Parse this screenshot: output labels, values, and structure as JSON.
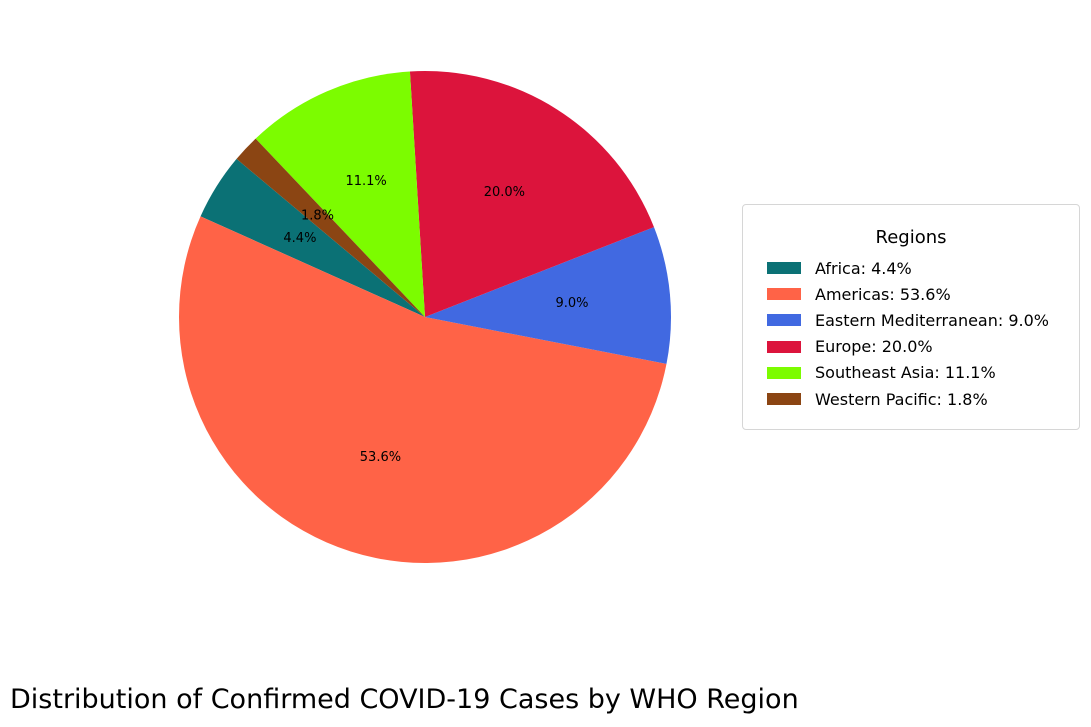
{
  "chart_data": {
    "type": "pie",
    "title": "Distribution of Confirmed COVID-19 Cases by WHO Region",
    "legend_title": "Regions",
    "legend_placement": "right",
    "categories": [
      "Africa",
      "Americas",
      "Eastern Mediterranean",
      "Europe",
      "Southeast Asia",
      "Western Pacific"
    ],
    "values": [
      4.4,
      53.6,
      9.0,
      20.0,
      11.1,
      1.8
    ],
    "pct_labels": [
      "4.4%",
      "53.6%",
      "9.0%",
      "20.0%",
      "11.1%",
      "1.8%"
    ],
    "legend_labels": [
      "Africa: 4.4%",
      "Americas: 53.6%",
      "Eastern Mediterranean: 9.0%",
      "Europe: 20.0%",
      "Southeast Asia: 11.1%",
      "Western Pacific: 1.8%"
    ],
    "colors": [
      "#0b7175",
      "#ff6347",
      "#4169e1",
      "#dc143c",
      "#7cfc00",
      "#8b4513"
    ],
    "start_angle_deg": 140,
    "direction": "counterclockwise"
  }
}
